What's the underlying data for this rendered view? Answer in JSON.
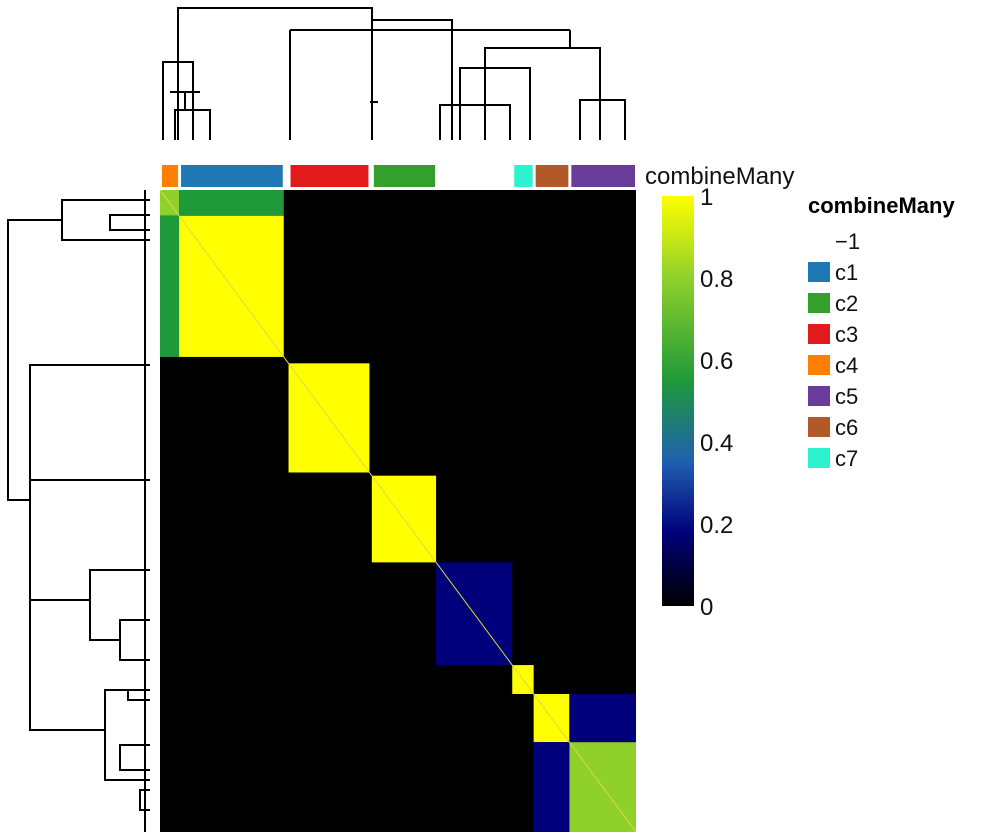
{
  "chart_data": {
    "type": "heatmap",
    "annotation_label": "combineMany",
    "legend": {
      "title": "combineMany",
      "items": [
        {
          "label": "−1",
          "color": "#ffffff"
        },
        {
          "label": "c1",
          "color": "#1f78b4"
        },
        {
          "label": "c2",
          "color": "#33a02c"
        },
        {
          "label": "c3",
          "color": "#e31a1c"
        },
        {
          "label": "c4",
          "color": "#ff7f00"
        },
        {
          "label": "c5",
          "color": "#6a3d9a"
        },
        {
          "label": "c6",
          "color": "#b15928"
        },
        {
          "label": "c7",
          "color": "#2df2cf"
        }
      ]
    },
    "colorbar": {
      "ticks": [
        "1",
        "0.8",
        "0.6",
        "0.4",
        "0.2",
        "0"
      ],
      "values": [
        1,
        0.8,
        0.6,
        0.4,
        0.2,
        0
      ],
      "colors": [
        "#000000",
        "#00007a",
        "#1f5fb0",
        "#1f9a3a",
        "#8fd12a",
        "#ffff00"
      ]
    },
    "column_order": [
      "c4",
      "c4",
      "c1",
      "c3",
      "c2",
      "-1",
      "c7",
      "c6",
      "c5"
    ],
    "clusters": [
      {
        "name": "c4",
        "start": 0.0,
        "end": 0.04,
        "within": 0.8
      },
      {
        "name": "c1",
        "start": 0.04,
        "end": 0.26,
        "within": 0.95
      },
      {
        "name": "c3",
        "start": 0.27,
        "end": 0.44,
        "within": 1.0
      },
      {
        "name": "c2",
        "start": 0.445,
        "end": 0.58,
        "within": 1.0
      },
      {
        "name": "-1",
        "start": 0.58,
        "end": 0.74,
        "within": 0.1
      },
      {
        "name": "c7",
        "start": 0.74,
        "end": 0.785,
        "within": 1.0
      },
      {
        "name": "c6",
        "start": 0.785,
        "end": 0.86,
        "within": 1.0
      },
      {
        "name": "c5",
        "start": 0.86,
        "end": 1.0,
        "within": 0.85
      }
    ],
    "off_diagonal": [
      {
        "a": "c6",
        "b": "c5",
        "value": 0.1
      },
      {
        "a": "c4",
        "b": "c1",
        "value": 0.6
      }
    ]
  }
}
